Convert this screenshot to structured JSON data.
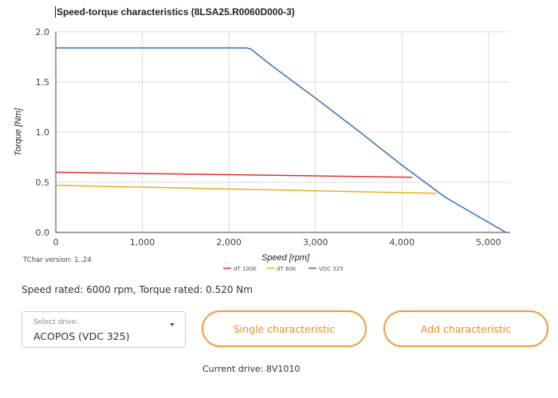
{
  "chart_data": {
    "type": "line",
    "title": "Speed-torque characteristics (8LSA25.R0060D000-3)",
    "xlabel": "Speed [rpm]",
    "ylabel": "Torque [Nm]",
    "xlim": [
      0,
      5250
    ],
    "ylim": [
      0,
      2.0
    ],
    "x_ticks": [
      0,
      1000,
      2000,
      3000,
      4000,
      5000
    ],
    "x_tick_labels": [
      "0",
      "1,000",
      "2,000",
      "3,000",
      "4,000",
      "5,000"
    ],
    "y_ticks": [
      0,
      0.5,
      1.0,
      1.5,
      2.0
    ],
    "y_tick_labels": [
      "0.0",
      "0.5",
      "1.0",
      "1.5",
      "2.0"
    ],
    "grid": true,
    "legend_position": "bottom",
    "series": [
      {
        "name": "dT 100K",
        "color": "#e03030",
        "x": [
          0,
          4120
        ],
        "y": [
          0.6,
          0.55
        ]
      },
      {
        "name": "dT 60K",
        "color": "#e8b020",
        "x": [
          0,
          4400
        ],
        "y": [
          0.47,
          0.39
        ]
      },
      {
        "name": "VDC 325",
        "color": "#2e72b8",
        "x": [
          0,
          2200,
          2250,
          2500,
          3000,
          3500,
          4000,
          4500,
          5000,
          5200
        ],
        "y": [
          1.84,
          1.84,
          1.83,
          1.66,
          1.34,
          1.01,
          0.67,
          0.35,
          0.1,
          0.0
        ]
      }
    ]
  },
  "footnote": "TChar version: 1..24",
  "rated_text": "Speed rated: 6000 rpm, Torque rated: 0.520 Nm",
  "drive_select": {
    "label": "Select drive:",
    "value": "ACOPOS (VDC 325)"
  },
  "buttons": {
    "single": "Single characteristic",
    "add": "Add characteristic"
  },
  "current_drive": "Current drive: 8V1010",
  "icons": {
    "dropdown": "chevron-down-icon"
  }
}
